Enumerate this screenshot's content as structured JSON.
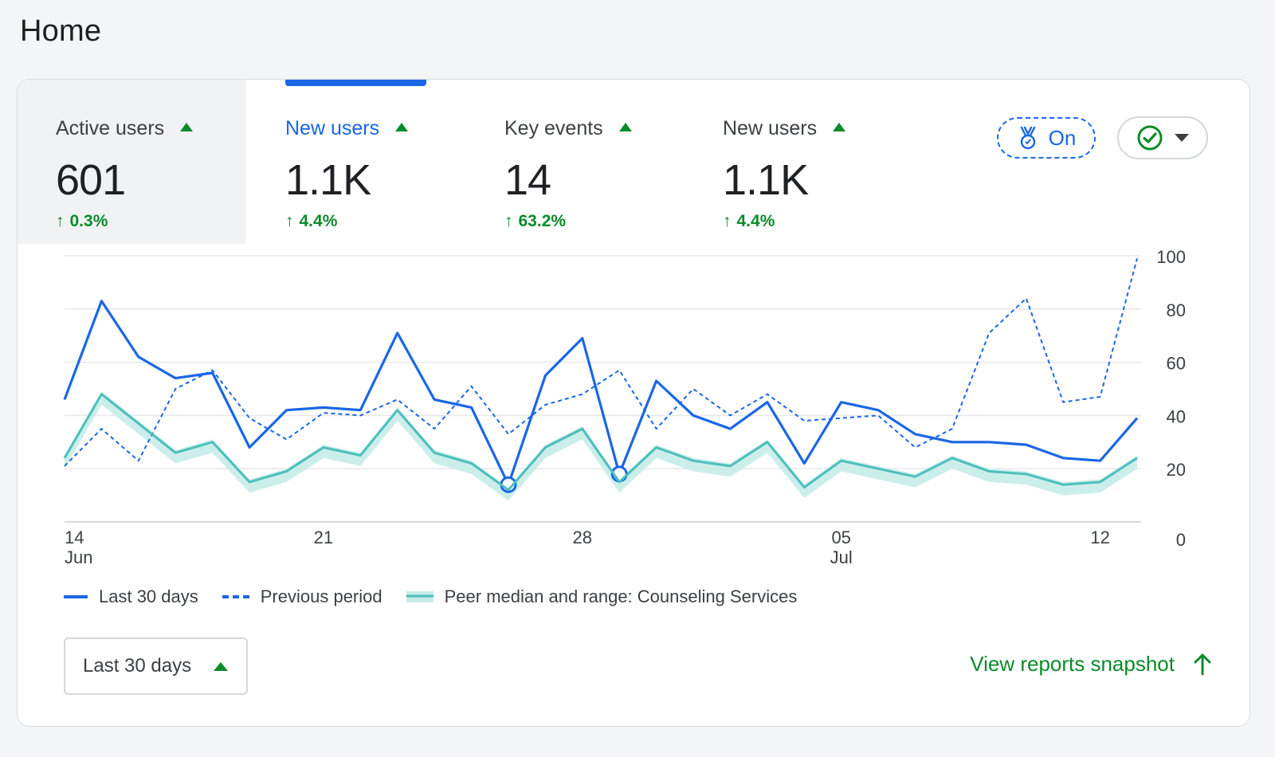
{
  "page": {
    "title": "Home"
  },
  "metrics": [
    {
      "label": "Active users",
      "value": "601",
      "change": "0.3%"
    },
    {
      "label": "New users",
      "value": "1.1K",
      "change": "4.4%"
    },
    {
      "label": "Key events",
      "value": "14",
      "change": "63.2%"
    },
    {
      "label": "New users",
      "value": "1.1K",
      "change": "4.4%"
    }
  ],
  "controls": {
    "on_chip_label": "On"
  },
  "colors": {
    "accent_blue": "#1a66e6",
    "positive_green": "#0b8a2a",
    "peer_teal": "#4cbfbc",
    "peer_range": "#c6ece9"
  },
  "legend": {
    "current": "Last 30 days",
    "previous": "Previous period",
    "peer": "Peer median and range: Counseling Services"
  },
  "footer": {
    "date_range": "Last 30 days",
    "view_link": "View reports snapshot"
  },
  "chart_data": {
    "type": "line",
    "x": [
      "Jun 14",
      "Jun 15",
      "Jun 16",
      "Jun 17",
      "Jun 18",
      "Jun 19",
      "Jun 20",
      "Jun 21",
      "Jun 22",
      "Jun 23",
      "Jun 24",
      "Jun 25",
      "Jun 26",
      "Jun 27",
      "Jun 28",
      "Jun 29",
      "Jun 30",
      "Jul 01",
      "Jul 02",
      "Jul 03",
      "Jul 04",
      "Jul 05",
      "Jul 06",
      "Jul 07",
      "Jul 08",
      "Jul 09",
      "Jul 10",
      "Jul 11",
      "Jul 12",
      "Jul 13"
    ],
    "x_tick_labels": [
      {
        "index": 0,
        "day": "14",
        "month": "Jun"
      },
      {
        "index": 7,
        "day": "21",
        "month": ""
      },
      {
        "index": 14,
        "day": "28",
        "month": ""
      },
      {
        "index": 21,
        "day": "05",
        "month": "Jul"
      },
      {
        "index": 28,
        "day": "12",
        "month": ""
      }
    ],
    "y_ticks": [
      "0",
      "20",
      "40",
      "60",
      "80",
      "100"
    ],
    "ylim": [
      0,
      100
    ],
    "grid": true,
    "series": [
      {
        "name": "Last 30 days",
        "style": "solid",
        "values": [
          46,
          83,
          62,
          54,
          56,
          28,
          42,
          43,
          42,
          71,
          46,
          43,
          14,
          55,
          69,
          18,
          53,
          40,
          35,
          45,
          22,
          45,
          42,
          33,
          30,
          30,
          29,
          24,
          23,
          39
        ],
        "markers": [
          12,
          15
        ]
      },
      {
        "name": "Previous period",
        "style": "dashed",
        "values": [
          21,
          35,
          23,
          50,
          57,
          39,
          31,
          41,
          40,
          46,
          35,
          51,
          33,
          44,
          48,
          57,
          35,
          50,
          40,
          48,
          38,
          39,
          40,
          28,
          35,
          71,
          84,
          45,
          47,
          99
        ]
      },
      {
        "name": "Peer median and range: Counseling Services",
        "style": "band",
        "values": [
          24,
          48,
          37,
          26,
          30,
          15,
          19,
          28,
          25,
          42,
          26,
          22,
          12,
          28,
          35,
          15,
          28,
          23,
          21,
          30,
          13,
          23,
          20,
          17,
          24,
          19,
          18,
          14,
          15,
          24
        ],
        "band_width": 4
      }
    ]
  }
}
